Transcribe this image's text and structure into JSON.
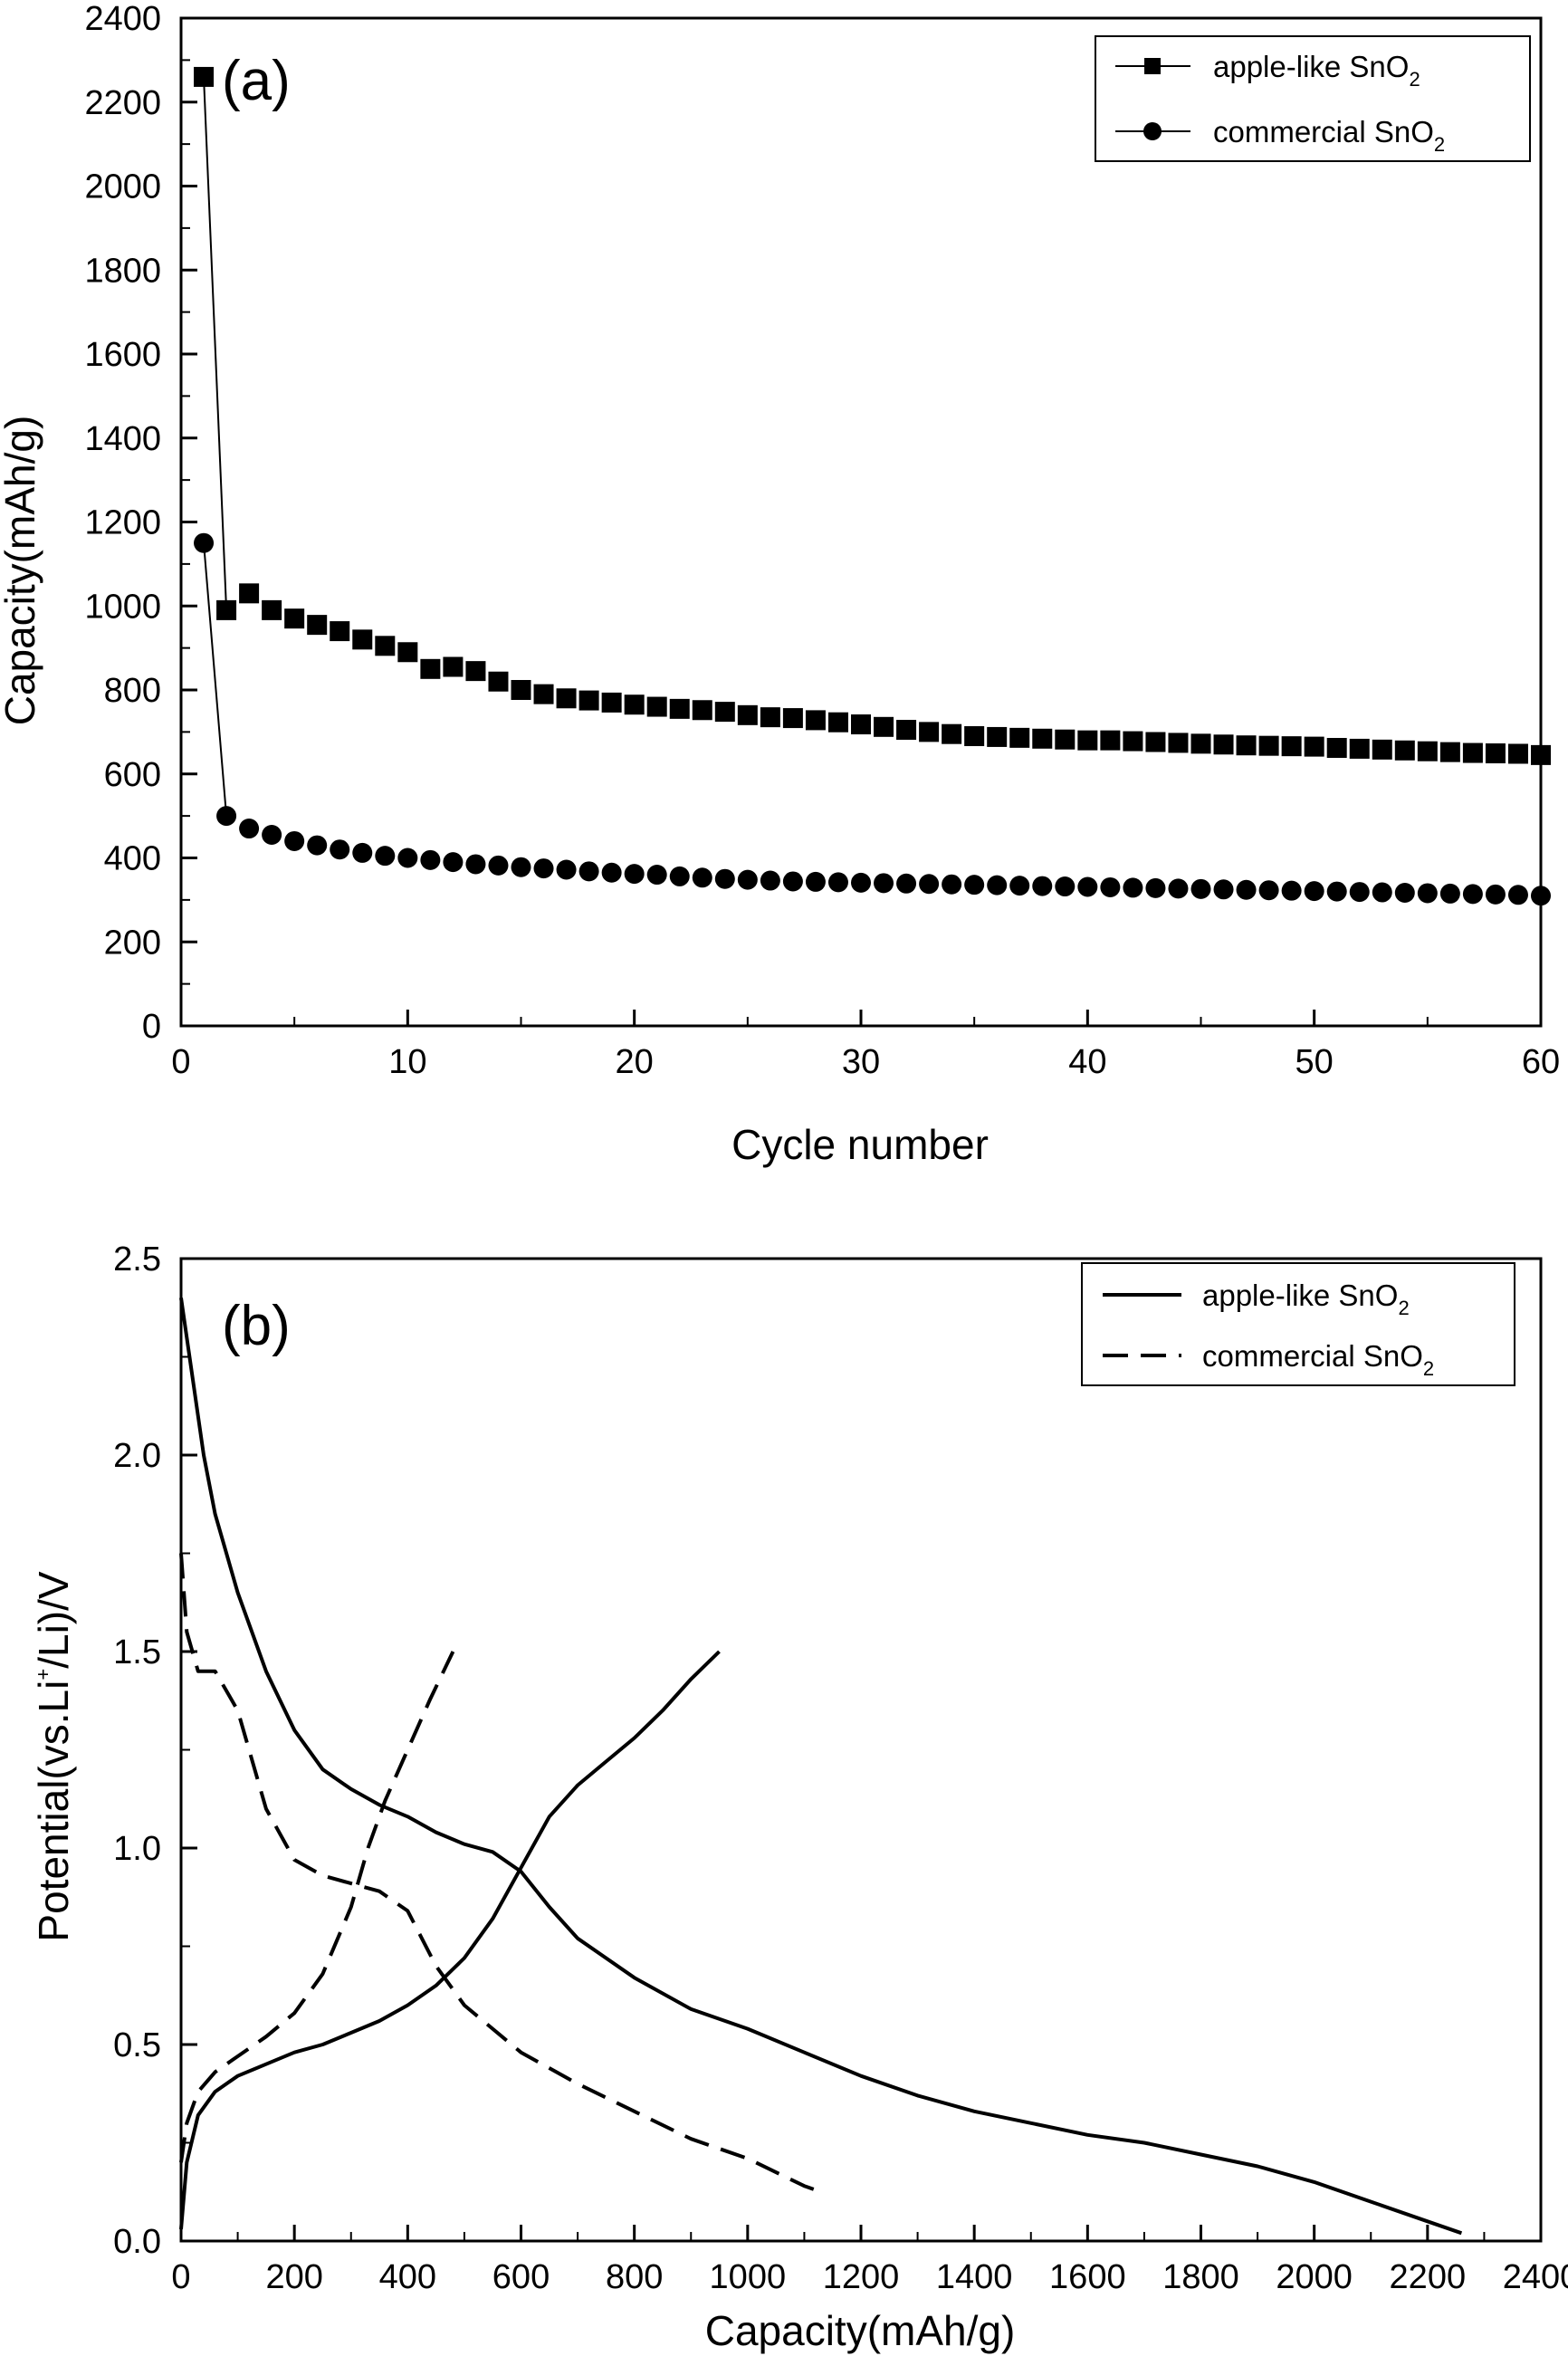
{
  "chart_data": [
    {
      "type": "scatter",
      "panel_label": "(a)",
      "xlabel": "Cycle number",
      "ylabel": "Capacity(mAh/g)",
      "xlim": [
        0,
        60
      ],
      "ylim": [
        0,
        2400
      ],
      "xticks": [
        0,
        10,
        20,
        30,
        40,
        50,
        60
      ],
      "yticks": [
        0,
        200,
        400,
        600,
        800,
        1000,
        1200,
        1400,
        1600,
        1800,
        2000,
        2200,
        2400
      ],
      "legend_position": "top-right",
      "grid": false,
      "series": [
        {
          "name": "apple-like SnO",
          "name_subscript": "2",
          "marker": "square",
          "x": [
            1,
            2,
            3,
            4,
            5,
            6,
            7,
            8,
            9,
            10,
            11,
            12,
            13,
            14,
            15,
            16,
            17,
            18,
            19,
            20,
            21,
            22,
            23,
            24,
            25,
            26,
            27,
            28,
            29,
            30,
            31,
            32,
            33,
            34,
            35,
            36,
            37,
            38,
            39,
            40,
            41,
            42,
            43,
            44,
            45,
            46,
            47,
            48,
            49,
            50,
            51,
            52,
            53,
            54,
            55,
            56,
            57,
            58,
            59,
            60
          ],
          "y": [
            2260,
            990,
            1030,
            990,
            970,
            955,
            940,
            920,
            905,
            890,
            850,
            855,
            845,
            820,
            800,
            790,
            780,
            775,
            770,
            765,
            760,
            755,
            752,
            748,
            740,
            735,
            733,
            728,
            723,
            718,
            712,
            705,
            700,
            695,
            690,
            688,
            686,
            684,
            682,
            680,
            680,
            678,
            676,
            674,
            672,
            670,
            668,
            667,
            666,
            665,
            662,
            660,
            658,
            656,
            654,
            652,
            650,
            649,
            648,
            645
          ]
        },
        {
          "name": "commercial SnO",
          "name_subscript": "2",
          "marker": "circle",
          "x": [
            1,
            2,
            3,
            4,
            5,
            6,
            7,
            8,
            9,
            10,
            11,
            12,
            13,
            14,
            15,
            16,
            17,
            18,
            19,
            20,
            21,
            22,
            23,
            24,
            25,
            26,
            27,
            28,
            29,
            30,
            31,
            32,
            33,
            34,
            35,
            36,
            37,
            38,
            39,
            40,
            41,
            42,
            43,
            44,
            45,
            46,
            47,
            48,
            49,
            50,
            51,
            52,
            53,
            54,
            55,
            56,
            57,
            58,
            59,
            60
          ],
          "y": [
            1150,
            500,
            470,
            455,
            440,
            430,
            420,
            412,
            405,
            400,
            395,
            390,
            385,
            382,
            378,
            375,
            372,
            368,
            365,
            362,
            360,
            356,
            353,
            350,
            348,
            346,
            344,
            343,
            342,
            341,
            340,
            339,
            338,
            337,
            336,
            335,
            334,
            333,
            332,
            331,
            330,
            329,
            328,
            327,
            326,
            325,
            324,
            323,
            322,
            321,
            320,
            319,
            318,
            317,
            316,
            315,
            314,
            313,
            312,
            310
          ]
        }
      ]
    },
    {
      "type": "line",
      "panel_label": "(b)",
      "xlabel": "Capacity(mAh/g)",
      "ylabel": "Potential(vs.Li",
      "ylabel_superscript": "+",
      "ylabel_suffix": "/Li)/V",
      "xlim": [
        0,
        2400
      ],
      "ylim": [
        0.0,
        2.5
      ],
      "xticks": [
        0,
        200,
        400,
        600,
        800,
        1000,
        1200,
        1400,
        1600,
        1800,
        2000,
        2200,
        2400
      ],
      "yticks": [
        0.0,
        0.5,
        1.0,
        1.5,
        2.0,
        2.5
      ],
      "ytick_labels": [
        "0.0",
        "0.5",
        "1.0",
        "1.5",
        "2.0",
        "2.5"
      ],
      "legend_position": "top-right",
      "grid": false,
      "series": [
        {
          "name": "apple-like SnO",
          "name_subscript": "2",
          "style": "solid",
          "curves": [
            {
              "x": [
                0,
                10,
                30,
                60,
                100,
                150,
                200,
                250,
                300,
                350,
                400,
                450,
                500,
                550,
                600,
                650,
                700,
                750,
                800,
                850,
                900,
                950
              ],
              "y": [
                0.03,
                0.2,
                0.32,
                0.38,
                0.42,
                0.45,
                0.48,
                0.5,
                0.53,
                0.56,
                0.6,
                0.65,
                0.72,
                0.82,
                0.95,
                1.08,
                1.16,
                1.22,
                1.28,
                1.35,
                1.43,
                1.5
              ]
            },
            {
              "x": [
                0,
                20,
                40,
                60,
                100,
                150,
                200,
                250,
                300,
                350,
                400,
                450,
                500,
                550,
                600,
                650,
                700,
                800,
                900,
                1000,
                1100,
                1200,
                1300,
                1400,
                1500,
                1600,
                1700,
                1800,
                1900,
                2000,
                2100,
                2200,
                2260
              ],
              "y": [
                2.4,
                2.2,
                2.0,
                1.85,
                1.65,
                1.45,
                1.3,
                1.2,
                1.15,
                1.11,
                1.08,
                1.04,
                1.01,
                0.99,
                0.94,
                0.85,
                0.77,
                0.67,
                0.59,
                0.54,
                0.48,
                0.42,
                0.37,
                0.33,
                0.3,
                0.27,
                0.25,
                0.22,
                0.19,
                0.15,
                0.1,
                0.05,
                0.02
              ]
            }
          ]
        },
        {
          "name": "commercial SnO",
          "name_subscript": "2",
          "style": "dashed",
          "curves": [
            {
              "x": [
                0,
                10,
                30,
                60,
                100,
                150,
                200,
                250,
                300,
                330,
                360,
                400,
                440,
                480
              ],
              "y": [
                0.2,
                0.3,
                0.38,
                0.43,
                0.47,
                0.52,
                0.58,
                0.68,
                0.85,
                1.0,
                1.12,
                1.25,
                1.38,
                1.5
              ]
            },
            {
              "x": [
                0,
                10,
                30,
                60,
                100,
                150,
                200,
                250,
                300,
                350,
                400,
                450,
                500,
                600,
                700,
                800,
                900,
                1000,
                1100,
                1120
              ],
              "y": [
                1.75,
                1.55,
                1.45,
                1.45,
                1.35,
                1.1,
                0.97,
                0.93,
                0.91,
                0.89,
                0.84,
                0.7,
                0.6,
                0.48,
                0.4,
                0.33,
                0.26,
                0.21,
                0.14,
                0.13
              ]
            }
          ]
        }
      ]
    }
  ]
}
